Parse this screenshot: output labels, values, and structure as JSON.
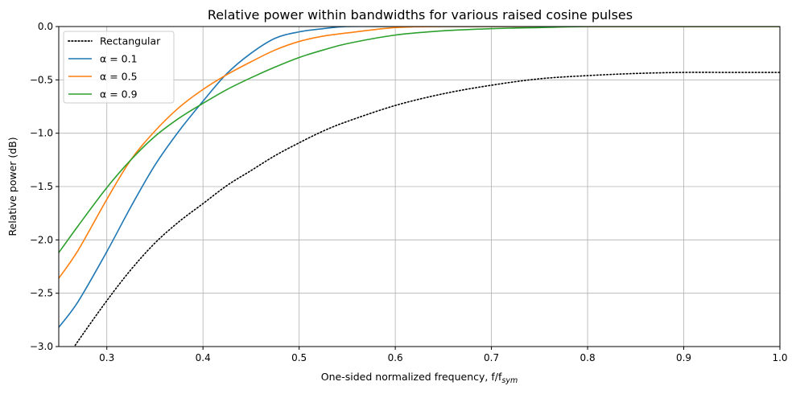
{
  "chart_data": {
    "type": "line",
    "title": "Relative power within bandwidths for various raised cosine pulses",
    "xlabel": "One-sided normalized frequency, f/f",
    "xlabel_subscript": "sym",
    "ylabel": "Relative power (dB)",
    "xlim": [
      0.25,
      1.0
    ],
    "ylim": [
      -3.0,
      0.0
    ],
    "xticks": [
      0.3,
      0.4,
      0.5,
      0.6,
      0.7,
      0.8,
      0.9,
      1.0
    ],
    "xtick_labels": [
      "0.3",
      "0.4",
      "0.5",
      "0.6",
      "0.7",
      "0.8",
      "0.9",
      "1.0"
    ],
    "yticks": [
      0.0,
      -0.5,
      -1.0,
      -1.5,
      -2.0,
      -2.5,
      -3.0
    ],
    "ytick_labels": [
      "0.0",
      "−0.5",
      "−1.0",
      "−1.5",
      "−2.0",
      "−2.5",
      "−3.0"
    ],
    "grid": true,
    "legend_position": "top-left",
    "x": [
      0.25,
      0.27,
      0.3,
      0.325,
      0.35,
      0.375,
      0.4,
      0.425,
      0.45,
      0.475,
      0.5,
      0.525,
      0.55,
      0.6,
      0.65,
      0.7,
      0.75,
      0.8,
      0.85,
      0.9,
      0.95,
      1.0
    ],
    "series": [
      {
        "name": "Rectangular",
        "color": "#000000",
        "style": "dotted",
        "values": [
          -3.22,
          -2.95,
          -2.57,
          -2.28,
          -2.03,
          -1.83,
          -1.66,
          -1.49,
          -1.35,
          -1.21,
          -1.09,
          -0.98,
          -0.89,
          -0.74,
          -0.63,
          -0.55,
          -0.49,
          -0.46,
          -0.44,
          -0.43,
          -0.43,
          -0.43
        ]
      },
      {
        "name": "α = 0.1",
        "color": "#1f77b4",
        "style": "solid",
        "values": [
          -2.82,
          -2.58,
          -2.11,
          -1.69,
          -1.3,
          -0.98,
          -0.7,
          -0.44,
          -0.25,
          -0.11,
          -0.05,
          -0.02,
          0.0,
          0.0,
          0.0,
          0.0,
          0.0,
          0.0,
          0.0,
          0.0,
          0.0,
          0.0
        ]
      },
      {
        "name": "α = 0.5",
        "color": "#ff7f0e",
        "style": "solid",
        "values": [
          -2.36,
          -2.1,
          -1.62,
          -1.25,
          -0.98,
          -0.76,
          -0.59,
          -0.45,
          -0.33,
          -0.22,
          -0.14,
          -0.09,
          -0.06,
          -0.01,
          0.0,
          0.0,
          0.0,
          0.0,
          0.0,
          0.0,
          0.0,
          0.0
        ]
      },
      {
        "name": "α = 0.9",
        "color": "#2ca02c",
        "style": "solid",
        "values": [
          -2.12,
          -1.87,
          -1.51,
          -1.25,
          -1.03,
          -0.86,
          -0.72,
          -0.59,
          -0.48,
          -0.38,
          -0.29,
          -0.22,
          -0.16,
          -0.08,
          -0.04,
          -0.02,
          -0.01,
          0.0,
          0.0,
          0.0,
          0.0,
          0.0
        ]
      }
    ]
  }
}
